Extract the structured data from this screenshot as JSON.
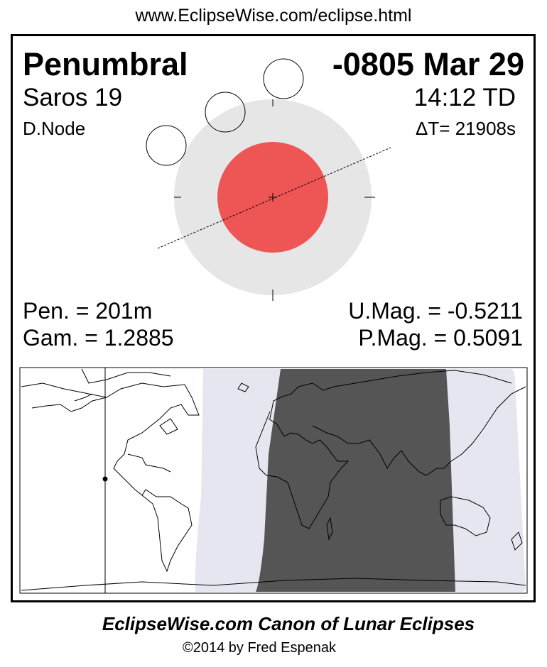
{
  "header": {
    "url": "www.EclipseWise.com/eclipse.html"
  },
  "eclipse": {
    "type": "Penumbral",
    "date": "-0805 Mar 29",
    "saros": "Saros  19",
    "time": "14:12 TD",
    "node": "D.Node",
    "delta_t": "ΔT=  21908s",
    "pen_duration": "Pen. = 201m",
    "gamma": "Gam. = 1.2885",
    "umbral_mag": "U.Mag. = -0.5211",
    "penumbral_mag": "P.Mag. = 0.5091"
  },
  "colors": {
    "umbra": "#ee5555",
    "penumbra": "#e6e6e6",
    "map_penumbral_zone": "#e6e6f0",
    "map_total_visibility": "#555555"
  },
  "footer": {
    "title": "EclipseWise.com Canon of Lunar Eclipses",
    "copyright": "©2014 by Fred Espenak"
  }
}
